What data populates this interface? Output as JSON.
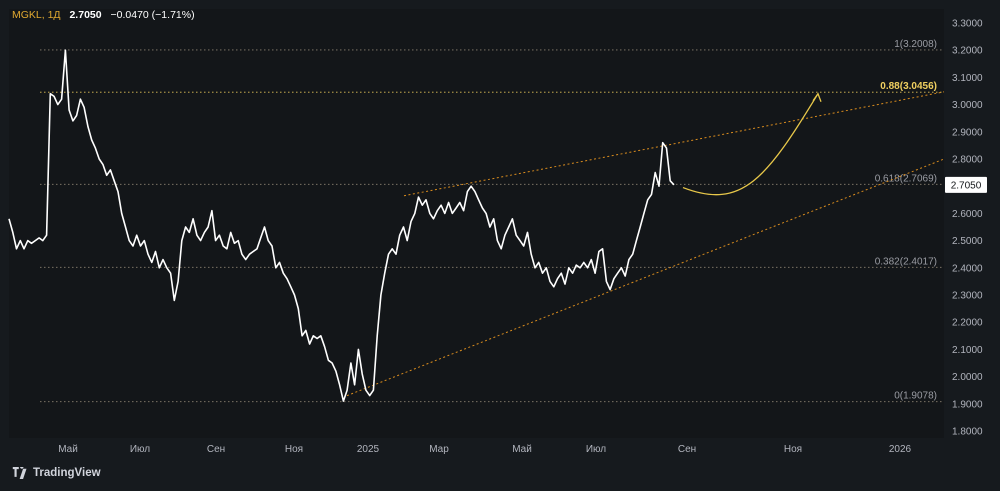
{
  "header": {
    "title": "MGKL, 1Д",
    "value": "2.7050",
    "change": "−0.0470 (−1.71%)"
  },
  "branding": {
    "name": "TradingView"
  },
  "colors": {
    "background": "#161a1e",
    "price_line": "#ffffff",
    "fib": "#c8a050",
    "channel": "#d98c1e",
    "projection": "#e8c84a",
    "axis_text": "#b2b5be"
  },
  "chart_data": {
    "type": "line",
    "y_axis_ticks": [
      "3.3000",
      "3.2000",
      "3.1000",
      "3.0000",
      "2.9000",
      "2.8000",
      "2.7000",
      "2.6000",
      "2.5000",
      "2.4000",
      "2.3000",
      "2.2000",
      "2.1000",
      "2.0000",
      "1.9000",
      "1.8000"
    ],
    "x_axis_ticks": [
      "Май",
      "Июл",
      "Сен",
      "Ноя",
      "2025",
      "Мар",
      "Май",
      "Июл",
      "Сен",
      "Ноя",
      "2026"
    ],
    "ylim": [
      1.8,
      3.3
    ],
    "last_price": "2.7050",
    "fib_levels": [
      {
        "label": "1(3.2008)",
        "value": 3.2008
      },
      {
        "label": "0.88(3.0456)",
        "value": 3.0456,
        "highlight": true
      },
      {
        "label": "0.618(2.7069)",
        "value": 2.7069
      },
      {
        "label": "0.382(2.4017)",
        "value": 2.4017
      },
      {
        "label": "0(1.9078)",
        "value": 1.9078
      }
    ],
    "series": [
      {
        "values": [
          2.58,
          2.53,
          2.47,
          2.5,
          2.47,
          2.5,
          2.49,
          2.5,
          2.51,
          2.5,
          2.52,
          3.04,
          3.03,
          3.0,
          3.02,
          3.2,
          2.98,
          2.94,
          2.96,
          3.02,
          2.99,
          2.92,
          2.87,
          2.84,
          2.8,
          2.78,
          2.74,
          2.76,
          2.72,
          2.68,
          2.6,
          2.55,
          2.5,
          2.48,
          2.52,
          2.48,
          2.5,
          2.45,
          2.42,
          2.46,
          2.4,
          2.43,
          2.4,
          2.38,
          2.28,
          2.35,
          2.5,
          2.55,
          2.53,
          2.58,
          2.52,
          2.5,
          2.53,
          2.55,
          2.61,
          2.5,
          2.52,
          2.48,
          2.47,
          2.53,
          2.49,
          2.5,
          2.45,
          2.43,
          2.45,
          2.46,
          2.47,
          2.51,
          2.55,
          2.5,
          2.48,
          2.4,
          2.42,
          2.38,
          2.36,
          2.33,
          2.3,
          2.25,
          2.15,
          2.17,
          2.12,
          2.15,
          2.14,
          2.15,
          2.11,
          2.06,
          2.05,
          2.02,
          1.97,
          1.91,
          1.95,
          2.05,
          1.97,
          2.1,
          2.01,
          1.95,
          1.93,
          1.95,
          2.15,
          2.3,
          2.38,
          2.45,
          2.47,
          2.45,
          2.52,
          2.55,
          2.5,
          2.57,
          2.6,
          2.66,
          2.63,
          2.65,
          2.6,
          2.58,
          2.61,
          2.63,
          2.6,
          2.64,
          2.6,
          2.62,
          2.64,
          2.61,
          2.68,
          2.7,
          2.68,
          2.65,
          2.62,
          2.6,
          2.55,
          2.58,
          2.5,
          2.47,
          2.52,
          2.55,
          2.58,
          2.52,
          2.5,
          2.48,
          2.53,
          2.45,
          2.4,
          2.42,
          2.38,
          2.4,
          2.35,
          2.33,
          2.36,
          2.38,
          2.34,
          2.4,
          2.38,
          2.41,
          2.4,
          2.42,
          2.4,
          2.43,
          2.38,
          2.46,
          2.47,
          2.35,
          2.32,
          2.36,
          2.38,
          2.4,
          2.37,
          2.43,
          2.45,
          2.5,
          2.55,
          2.6,
          2.65,
          2.67,
          2.75,
          2.7,
          2.86,
          2.84,
          2.72,
          2.705
        ]
      }
    ],
    "channel": {
      "upper": [
        [
          0.0,
          2.665
        ],
        [
          1.0,
          3.047
        ]
      ],
      "lower": [
        [
          0.0,
          1.93
        ],
        [
          1.0,
          2.8
        ]
      ]
    },
    "projection": [
      [
        0.0,
        2.695
      ],
      [
        0.29,
        2.655
      ],
      [
        0.62,
        2.73
      ],
      [
        1.0,
        3.04
      ]
    ]
  }
}
